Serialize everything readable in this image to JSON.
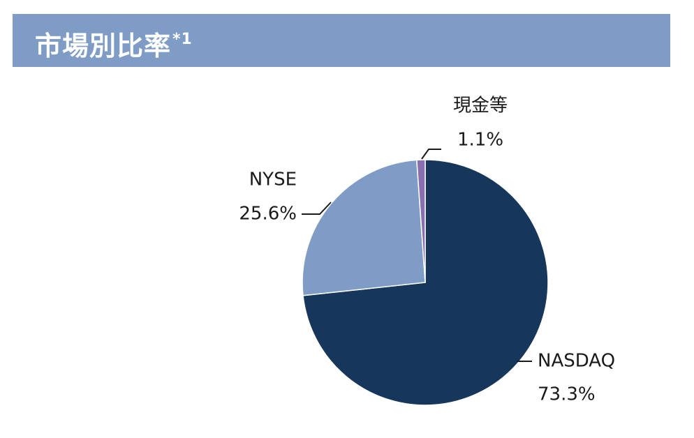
{
  "header": {
    "title": "市場別比率",
    "title_sup": "*1",
    "background": "#7e9cc6"
  },
  "chart_data": {
    "type": "pie",
    "title": "市場別比率*1",
    "slices": [
      {
        "label": "NASDAQ",
        "value": 73.3,
        "value_label": "73.3%",
        "color": "#16365c"
      },
      {
        "label": "NYSE",
        "value": 25.6,
        "value_label": "25.6%",
        "color": "#7e9cc6"
      },
      {
        "label": "現金等",
        "value": 1.1,
        "value_label": "1.1%",
        "color": "#8a6fb0"
      }
    ],
    "start": "12 o'clock",
    "direction": "clockwise",
    "labels": "outside with leader lines"
  }
}
